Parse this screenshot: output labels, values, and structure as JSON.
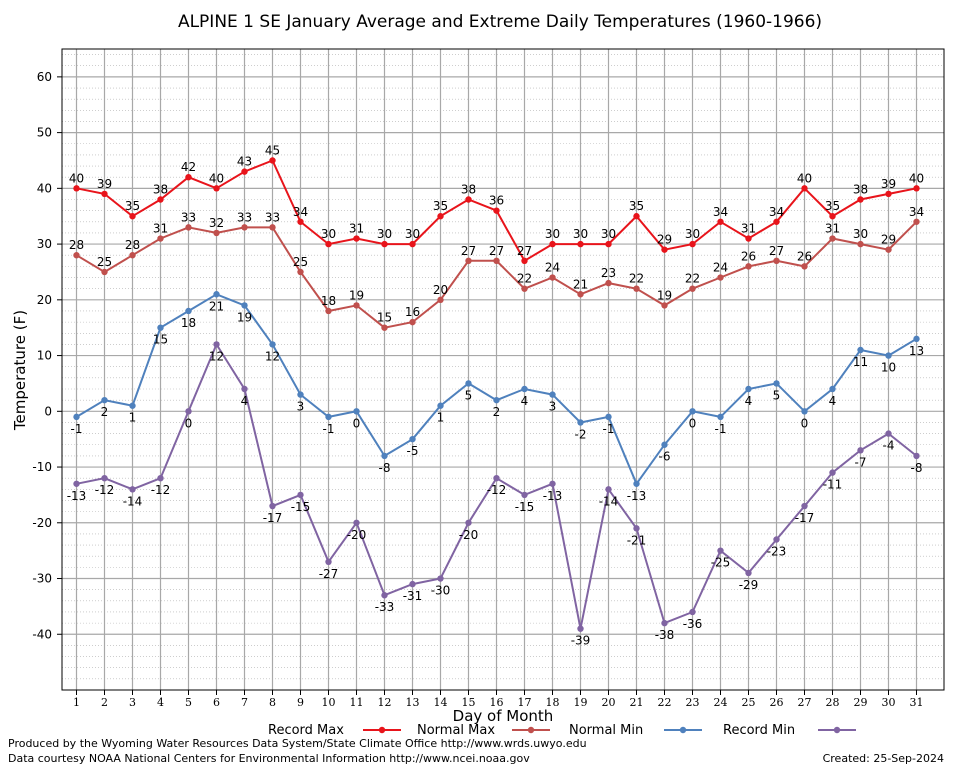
{
  "chart_data": {
    "type": "line",
    "title": "ALPINE 1 SE January Average and Extreme Daily Temperatures (1960-1966)",
    "xlabel": "Day of Month",
    "ylabel": "Temperature (F)",
    "ylim": [
      -50,
      65
    ],
    "yticks": [
      -40,
      -30,
      -20,
      -10,
      0,
      10,
      20,
      30,
      40,
      50,
      60
    ],
    "x": [
      1,
      2,
      3,
      4,
      5,
      6,
      7,
      8,
      9,
      10,
      11,
      12,
      13,
      14,
      15,
      16,
      17,
      18,
      19,
      20,
      21,
      22,
      23,
      24,
      25,
      26,
      27,
      28,
      29,
      30,
      31
    ],
    "grid": true,
    "legend_position": "bottom",
    "series": [
      {
        "name": "Record Max",
        "color": "#e8141b",
        "values": [
          40,
          39,
          35,
          38,
          42,
          40,
          43,
          45,
          34,
          30,
          31,
          30,
          30,
          35,
          38,
          36,
          27,
          30,
          30,
          30,
          35,
          29,
          30,
          34,
          31,
          34,
          40,
          35,
          38,
          39,
          40
        ]
      },
      {
        "name": "Normal Max",
        "color": "#c0504d",
        "values": [
          28,
          25,
          28,
          31,
          33,
          32,
          33,
          33,
          25,
          18,
          19,
          15,
          16,
          20,
          27,
          27,
          22,
          24,
          21,
          23,
          22,
          19,
          22,
          24,
          26,
          27,
          26,
          31,
          30,
          29,
          34
        ]
      },
      {
        "name": "Normal Min",
        "color": "#4f81bd",
        "values": [
          -1,
          2,
          1,
          15,
          18,
          21,
          19,
          12,
          3,
          -1,
          0,
          -8,
          -5,
          1,
          5,
          2,
          4,
          3,
          -2,
          -1,
          -13,
          -6,
          0,
          -1,
          4,
          5,
          0,
          4,
          11,
          10,
          13
        ]
      },
      {
        "name": "Record Min",
        "color": "#8064a2",
        "values": [
          -13,
          -12,
          -14,
          -12,
          0,
          12,
          4,
          -17,
          -15,
          -27,
          -20,
          -33,
          -31,
          -30,
          -20,
          -12,
          -15,
          -13,
          -39,
          -14,
          -21,
          -38,
          -36,
          -25,
          -29,
          -23,
          -17,
          -11,
          -7,
          -4,
          -8
        ]
      }
    ]
  },
  "footer": {
    "produced_by": "Produced by the Wyoming Water Resources Data System/State Climate Office http://www.wrds.uwyo.edu",
    "courtesy": "Data courtesy NOAA National Centers for Environmental Information http://www.ncei.noaa.gov",
    "created": "Created:  25-Sep-2024"
  }
}
